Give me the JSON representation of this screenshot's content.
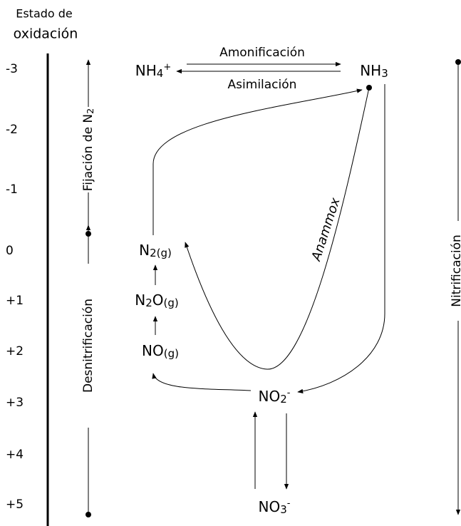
{
  "axis_title": [
    "Estado de",
    "oxidación"
  ],
  "levels": [
    "-3",
    "-2",
    "-1",
    "0",
    "+1",
    "+2",
    "+3",
    "+4",
    "+5"
  ],
  "processes": {
    "fixation": [
      {
        "text": "Fijación de N"
      },
      {
        "sub": "2"
      }
    ],
    "denitrification": "Desnitrificación",
    "nitrification": "Nitrificación",
    "ammonification": "Amonificación",
    "assimilation": "Asimilación",
    "anammox": "Anammox"
  },
  "species": [
    [
      {
        "text": "NH"
      },
      {
        "sub": "4"
      },
      {
        "sup": "+"
      }
    ],
    [
      {
        "text": "NH"
      },
      {
        "sub": "3"
      }
    ],
    [
      {
        "text": "N"
      },
      {
        "sub": "2(g)"
      }
    ],
    [
      {
        "text": "N"
      },
      {
        "sub": "2"
      },
      {
        "text": "O"
      },
      {
        "sub": "(g)"
      }
    ],
    [
      {
        "text": "NO"
      },
      {
        "sub": "(g)"
      }
    ],
    [
      {
        "text": "NO"
      },
      {
        "sub": "2"
      },
      {
        "sup": "-"
      }
    ],
    [
      {
        "text": "NO"
      },
      {
        "sub": "3"
      },
      {
        "sup": "-"
      }
    ]
  ]
}
